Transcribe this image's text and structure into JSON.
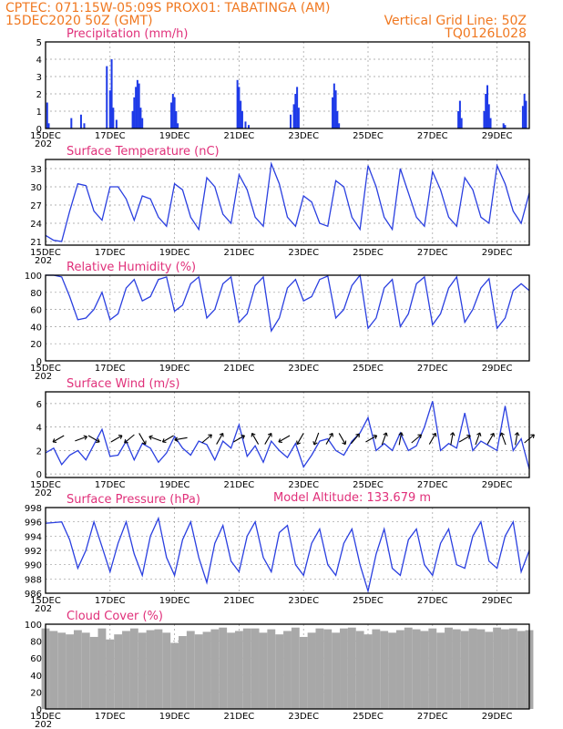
{
  "header": {
    "left1": "CPTEC:    071:15W-05:09S    PROX01: TABATINGA (AM)",
    "left2": "15DEC2020 50Z (GMT)",
    "right1": "Vertical Grid Line: 50Z",
    "right2": "TQ0126L028",
    "model_altitude": "Model Altitude: 133.679 m"
  },
  "x_ticks": [
    "15DEC",
    "17DEC",
    "19DEC",
    "21DEC",
    "23DEC",
    "25DEC",
    "27DEC",
    "29DEC"
  ],
  "x_tick_days": [
    0,
    2,
    4,
    6,
    8,
    10,
    12,
    14
  ],
  "year_stub": "202",
  "colors": {
    "line": "#2a3fe0",
    "bar": "#1e3ae8",
    "cloud": "#a8a8a8",
    "header": "#f07820",
    "title": "#e0307a"
  },
  "chart_data": [
    {
      "type": "bar",
      "title": "Precipitation (mm/h)",
      "ylim": [
        0,
        5
      ],
      "y_ticks": [
        0,
        1,
        2,
        3,
        4,
        5
      ],
      "x_days": [
        0.05,
        0.1,
        0.8,
        1.1,
        1.2,
        1.9,
        2.0,
        2.05,
        2.1,
        2.2,
        2.7,
        2.75,
        2.8,
        2.85,
        2.9,
        2.95,
        3.0,
        3.9,
        3.95,
        4.0,
        4.05,
        4.1,
        5.95,
        6.0,
        6.05,
        6.1,
        6.2,
        6.3,
        7.6,
        7.7,
        7.75,
        7.8,
        7.85,
        8.9,
        8.95,
        9.0,
        9.05,
        9.1,
        12.8,
        12.85,
        12.9,
        13.6,
        13.65,
        13.7,
        13.75,
        13.8,
        14.2,
        14.25,
        14.8,
        14.85,
        14.9
      ],
      "values": [
        1.5,
        0.3,
        0.6,
        0.8,
        0.3,
        3.6,
        2.2,
        4.0,
        1.2,
        0.5,
        1.0,
        1.8,
        2.4,
        2.8,
        2.6,
        1.2,
        0.6,
        1.5,
        2.0,
        1.8,
        1.0,
        0.3,
        2.8,
        2.4,
        1.6,
        1.0,
        0.4,
        0.2,
        0.8,
        1.4,
        2.0,
        2.4,
        1.2,
        1.8,
        2.6,
        2.2,
        1.0,
        0.3,
        1.0,
        1.6,
        0.6,
        1.0,
        2.0,
        2.5,
        1.4,
        0.6,
        0.3,
        0.2,
        1.3,
        2.0,
        1.6
      ]
    },
    {
      "type": "line",
      "title": "Surface Temperature (nC)",
      "ylim": [
        20.4,
        34.5
      ],
      "y_ticks": [
        21,
        24,
        27,
        30,
        33
      ],
      "x_days": [
        0,
        0.25,
        0.5,
        0.75,
        1,
        1.25,
        1.5,
        1.75,
        2,
        2.25,
        2.5,
        2.75,
        3,
        3.25,
        3.5,
        3.75,
        4,
        4.25,
        4.5,
        4.75,
        5,
        5.25,
        5.5,
        5.75,
        6,
        6.25,
        6.5,
        6.75,
        7,
        7.25,
        7.5,
        7.75,
        8,
        8.25,
        8.5,
        8.75,
        9,
        9.25,
        9.5,
        9.75,
        10,
        10.25,
        10.5,
        10.75,
        11,
        11.25,
        11.5,
        11.75,
        12,
        12.25,
        12.5,
        12.75,
        13,
        13.25,
        13.5,
        13.75,
        14,
        14.25,
        14.5,
        14.75,
        15
      ],
      "values": [
        22,
        21.2,
        21,
        26,
        30.5,
        30.2,
        26,
        24.5,
        30,
        30,
        28,
        24.5,
        28.5,
        28,
        25,
        23.5,
        30.5,
        29.5,
        25,
        23,
        31.5,
        30,
        25.5,
        24,
        32,
        29.5,
        25,
        23.5,
        33.8,
        30.5,
        25,
        23.5,
        28.5,
        27.5,
        24,
        23.5,
        31,
        30,
        25,
        23,
        33.5,
        30,
        25,
        23,
        33,
        29,
        25,
        23.5,
        32.5,
        29.5,
        25,
        23.5,
        31.5,
        29.5,
        25,
        24,
        33.5,
        30.5,
        26,
        24,
        29
      ]
    },
    {
      "type": "line",
      "title": "Relative Humidity (%)",
      "ylim": [
        0,
        100
      ],
      "y_ticks": [
        0,
        20,
        40,
        60,
        80,
        100
      ],
      "x_days": [
        0,
        0.25,
        0.5,
        0.75,
        1,
        1.25,
        1.5,
        1.75,
        2,
        2.25,
        2.5,
        2.75,
        3,
        3.25,
        3.5,
        3.75,
        4,
        4.25,
        4.5,
        4.75,
        5,
        5.25,
        5.5,
        5.75,
        6,
        6.25,
        6.5,
        6.75,
        7,
        7.25,
        7.5,
        7.75,
        8,
        8.25,
        8.5,
        8.75,
        9,
        9.25,
        9.5,
        9.75,
        10,
        10.25,
        10.5,
        10.75,
        11,
        11.25,
        11.5,
        11.75,
        12,
        12.25,
        12.5,
        12.75,
        13,
        13.25,
        13.5,
        13.75,
        14,
        14.25,
        14.5,
        14.75,
        15
      ],
      "values": [
        100,
        100,
        98,
        75,
        48,
        50,
        60,
        80,
        48,
        55,
        85,
        95,
        70,
        75,
        95,
        98,
        58,
        65,
        90,
        98,
        50,
        60,
        90,
        98,
        45,
        55,
        88,
        98,
        35,
        50,
        85,
        95,
        70,
        75,
        95,
        99,
        50,
        60,
        88,
        100,
        38,
        50,
        85,
        95,
        40,
        55,
        90,
        98,
        42,
        55,
        85,
        98,
        45,
        60,
        85,
        96,
        38,
        50,
        82,
        90,
        82
      ]
    },
    {
      "type": "line",
      "title": "Surface Wind (m/s)",
      "ylim": [
        -0.3,
        7
      ],
      "y_ticks": [
        0,
        2,
        4,
        6
      ],
      "x_days": [
        0,
        0.25,
        0.5,
        0.75,
        1,
        1.25,
        1.5,
        1.75,
        2,
        2.25,
        2.5,
        2.75,
        3,
        3.25,
        3.5,
        3.75,
        4,
        4.25,
        4.5,
        4.75,
        5,
        5.25,
        5.5,
        5.75,
        6,
        6.25,
        6.5,
        6.75,
        7,
        7.25,
        7.5,
        7.75,
        8,
        8.25,
        8.5,
        8.75,
        9,
        9.25,
        9.5,
        9.75,
        10,
        10.25,
        10.5,
        10.75,
        11,
        11.25,
        11.5,
        11.75,
        12,
        12.25,
        12.5,
        12.75,
        13,
        13.25,
        13.5,
        13.75,
        14,
        14.25,
        14.5,
        14.75,
        15
      ],
      "values": [
        1.8,
        2.2,
        0.8,
        1.6,
        2.0,
        1.2,
        2.5,
        3.8,
        1.5,
        1.6,
        2.8,
        1.2,
        2.6,
        2.2,
        1.0,
        1.8,
        3.2,
        2.2,
        1.6,
        2.8,
        2.5,
        1.2,
        2.8,
        2.2,
        4.2,
        1.5,
        2.4,
        1.0,
        2.8,
        2.0,
        1.4,
        2.6,
        0.6,
        1.6,
        2.8,
        3.0,
        2.0,
        1.6,
        2.8,
        3.5,
        4.8,
        2.0,
        2.6,
        2.0,
        3.5,
        2.0,
        2.4,
        4.0,
        6.2,
        2.0,
        2.6,
        2.2,
        5.2,
        2.0,
        2.8,
        2.4,
        2.0,
        5.8,
        2.0,
        3.0,
        0.4
      ],
      "arrow_days": [
        0.4,
        1.1,
        1.5,
        2.2,
        2.6,
        3.0,
        3.4,
        3.8,
        4.2,
        5.0,
        5.4,
        6.0,
        6.5,
        6.9,
        7.4,
        7.9,
        8.4,
        8.8,
        9.2,
        9.6,
        10.1,
        10.5,
        11.0,
        11.5,
        12.0,
        12.6,
        13.0,
        13.4,
        13.8,
        14.2,
        14.6,
        15.0
      ],
      "arrow_angles_deg": [
        210,
        20,
        330,
        30,
        220,
        300,
        160,
        210,
        190,
        40,
        60,
        30,
        120,
        60,
        210,
        240,
        250,
        60,
        300,
        50,
        30,
        70,
        80,
        40,
        60,
        80,
        30,
        70,
        60,
        110,
        80,
        40
      ]
    },
    {
      "type": "line",
      "title": "Surface Pressure (hPa)",
      "ylim": [
        986,
        998
      ],
      "y_ticks": [
        986,
        988,
        990,
        992,
        994,
        996,
        998
      ],
      "x_days": [
        0,
        0.25,
        0.5,
        0.75,
        1,
        1.25,
        1.5,
        1.75,
        2,
        2.25,
        2.5,
        2.75,
        3,
        3.25,
        3.5,
        3.75,
        4,
        4.25,
        4.5,
        4.75,
        5,
        5.25,
        5.5,
        5.75,
        6,
        6.25,
        6.5,
        6.75,
        7,
        7.25,
        7.5,
        7.75,
        8,
        8.25,
        8.5,
        8.75,
        9,
        9.25,
        9.5,
        9.75,
        10,
        10.25,
        10.5,
        10.75,
        11,
        11.25,
        11.5,
        11.75,
        12,
        12.25,
        12.5,
        12.75,
        13,
        13.25,
        13.5,
        13.75,
        14,
        14.25,
        14.5,
        14.75,
        15
      ],
      "values": [
        995.8,
        995.9,
        996,
        993.5,
        989.5,
        992,
        996,
        992.5,
        989,
        993,
        996,
        991.5,
        988.5,
        994,
        996.5,
        991,
        988.5,
        993.5,
        996,
        991,
        987.5,
        993,
        995.5,
        990.5,
        989,
        994,
        996,
        991,
        989,
        994.5,
        995.5,
        990,
        988.5,
        993,
        995,
        990,
        988.5,
        993,
        995,
        990,
        986.3,
        991.5,
        995,
        989.5,
        988.5,
        993.5,
        995,
        990,
        988.5,
        993,
        995,
        990,
        989.5,
        994,
        996,
        990.5,
        989.5,
        994,
        996,
        989,
        992
      ]
    },
    {
      "type": "bar",
      "title": "Cloud Cover (%)",
      "ylim": [
        0,
        100
      ],
      "y_ticks": [
        0,
        20,
        40,
        60,
        80,
        100
      ],
      "x_days": [
        0,
        0.25,
        0.5,
        0.75,
        1,
        1.25,
        1.5,
        1.75,
        2,
        2.25,
        2.5,
        2.75,
        3,
        3.25,
        3.5,
        3.75,
        4,
        4.25,
        4.5,
        4.75,
        5,
        5.25,
        5.5,
        5.75,
        6,
        6.25,
        6.5,
        6.75,
        7,
        7.25,
        7.5,
        7.75,
        8,
        8.25,
        8.5,
        8.75,
        9,
        9.25,
        9.5,
        9.75,
        10,
        10.25,
        10.5,
        10.75,
        11,
        11.25,
        11.5,
        11.75,
        12,
        12.25,
        12.5,
        12.75,
        13,
        13.25,
        13.5,
        13.75,
        14,
        14.25,
        14.5,
        14.75,
        15
      ],
      "values": [
        95,
        92,
        90,
        88,
        93,
        90,
        85,
        95,
        82,
        88,
        92,
        95,
        90,
        93,
        94,
        90,
        78,
        86,
        92,
        88,
        91,
        94,
        96,
        90,
        92,
        95,
        95,
        90,
        94,
        88,
        92,
        96,
        85,
        90,
        95,
        94,
        90,
        95,
        96,
        92,
        88,
        94,
        92,
        90,
        93,
        96,
        94,
        92,
        95,
        90,
        96,
        94,
        92,
        95,
        94,
        91,
        96,
        94,
        95,
        92,
        93
      ]
    }
  ]
}
